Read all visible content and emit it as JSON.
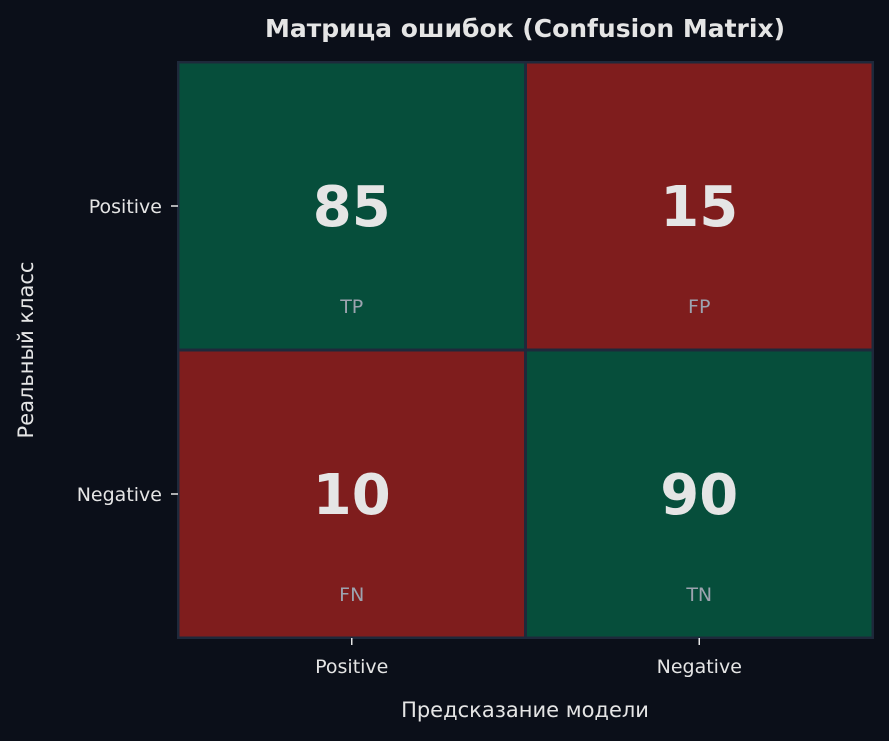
{
  "colors": {
    "background": "#0b0f19",
    "correct": "#064e3b",
    "error": "#7f1d1d",
    "grid": "#1e293b",
    "text": "#e5e5e5",
    "label": "#9ca3af"
  },
  "chart_data": {
    "type": "heatmap",
    "title": "Матрица ошибок (Confusion Matrix)",
    "xlabel": "Предсказание модели",
    "ylabel": "Реальный класс",
    "x_categories": [
      "Positive",
      "Negative"
    ],
    "y_categories": [
      "Positive",
      "Negative"
    ],
    "values": [
      [
        85,
        15
      ],
      [
        10,
        90
      ]
    ],
    "cell_labels": [
      [
        "TP",
        "FP"
      ],
      [
        "FN",
        "TN"
      ]
    ],
    "grid": false
  }
}
